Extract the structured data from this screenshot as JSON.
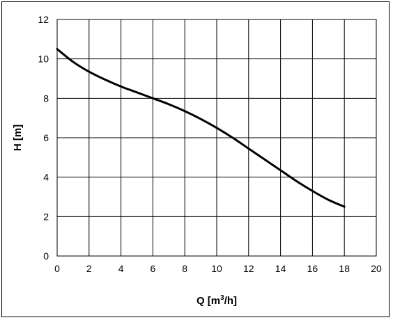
{
  "chart_data": {
    "type": "line",
    "title": "",
    "xlabel": "Q [m",
    "xlabel_superscript": "3",
    "xlabel_suffix": "/h]",
    "ylabel": "H [m]",
    "xlim": [
      0,
      20
    ],
    "ylim": [
      0,
      12
    ],
    "xticks": [
      0,
      2,
      4,
      6,
      8,
      10,
      12,
      14,
      16,
      18,
      20
    ],
    "yticks": [
      0,
      2,
      4,
      6,
      8,
      10,
      12
    ],
    "grid": true,
    "legend": "none",
    "series": [
      {
        "color": "#000000",
        "x": [
          0,
          1,
          2,
          3,
          4,
          5,
          6,
          7,
          8,
          9,
          10,
          11,
          12,
          13,
          14,
          15,
          16,
          17,
          18
        ],
        "y": [
          10.5,
          9.85,
          9.35,
          8.95,
          8.6,
          8.3,
          8.0,
          7.7,
          7.35,
          6.95,
          6.5,
          6.0,
          5.45,
          4.9,
          4.35,
          3.8,
          3.3,
          2.85,
          2.5
        ]
      }
    ]
  }
}
